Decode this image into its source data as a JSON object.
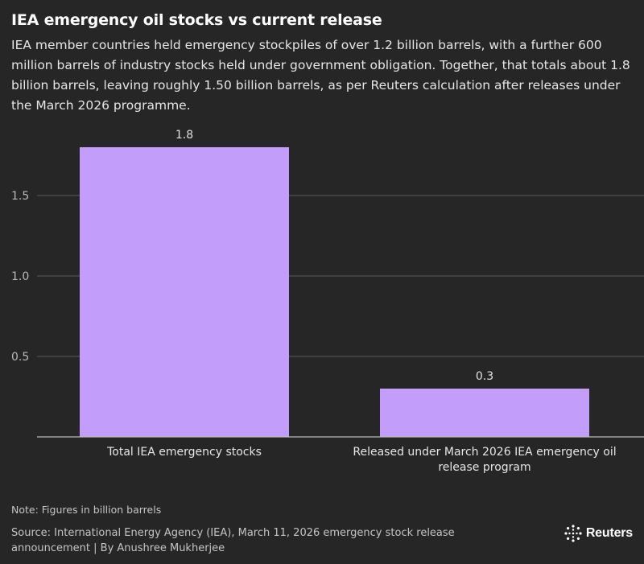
{
  "title": "IEA emergency oil stocks vs current release",
  "subtitle": "IEA member countries held emergency stockpiles of over 1.2 billion barrels, with a further 600 million barrels of industry stocks held under government obligation. Together, that totals about 1.8 billion barrels, leaving roughly 1.50 billion barrels, as per Reuters calculation after releases under the March 2026 programme.",
  "note": "Note: Figures in billion barrels",
  "source": "Source: International Energy Agency (IEA), March 11, 2026 emergency stock release announcement | By Anushree Mukherjee",
  "logo": {
    "text": "Reuters",
    "icon": "reuters-dot-ring-icon"
  },
  "colors": {
    "background": "#262626",
    "bar": "#c39dfa",
    "grid": "#5a5a5a",
    "text": "#ffffff",
    "muted": "#c4c4c4"
  },
  "chart_data": {
    "type": "bar",
    "categories": [
      [
        "Total IEA emergency stocks"
      ],
      [
        "Released under March 2026 IEA emergency oil",
        "release program"
      ]
    ],
    "values": [
      1.8,
      0.3
    ],
    "data_labels": [
      "1.8",
      "0.3"
    ],
    "ylim": [
      0,
      2.0
    ],
    "yticks": [
      0.5,
      1.0,
      1.5
    ],
    "ytick_labels": [
      "0.5",
      "1.0",
      "1.5"
    ],
    "grid": true,
    "title": "",
    "xlabel": "",
    "ylabel": ""
  }
}
